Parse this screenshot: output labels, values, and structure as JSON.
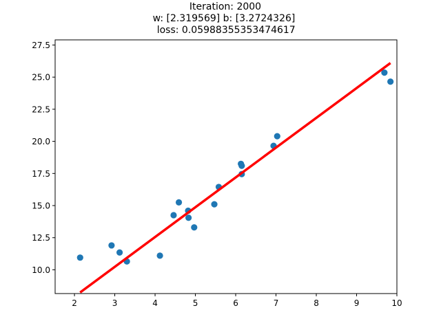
{
  "chart_data": {
    "type": "scatter",
    "title_lines": [
      "Iteration: 2000",
      "w: [2.319569] b: [3.2724326]",
      " loss: 0.05988355353474617"
    ],
    "xlabel": "",
    "ylabel": "",
    "xlim": [
      1.52,
      10.0
    ],
    "ylim": [
      8.15,
      27.9
    ],
    "x_ticks": [
      2,
      3,
      4,
      5,
      6,
      7,
      8,
      9,
      10
    ],
    "x_tick_labels": [
      "2",
      "3",
      "4",
      "5",
      "6",
      "7",
      "8",
      "9",
      "10"
    ],
    "y_ticks": [
      10.0,
      12.5,
      15.0,
      17.5,
      20.0,
      22.5,
      25.0,
      27.5
    ],
    "y_tick_labels": [
      "10.0",
      "12.5",
      "15.0",
      "17.5",
      "20.0",
      "22.5",
      "25.0",
      "27.5"
    ],
    "grid": false,
    "legend": "none",
    "points": {
      "color": "#1f77b4",
      "x": [
        2.14,
        2.92,
        3.12,
        3.3,
        4.12,
        4.46,
        4.59,
        4.82,
        4.83,
        4.97,
        5.47,
        5.58,
        6.13,
        6.15,
        6.15,
        6.94,
        7.03,
        9.69,
        9.84
      ],
      "y": [
        10.95,
        11.9,
        11.35,
        10.65,
        11.1,
        14.25,
        15.25,
        14.6,
        14.05,
        13.3,
        15.1,
        16.45,
        18.25,
        18.1,
        17.45,
        19.65,
        20.4,
        25.35,
        24.65
      ]
    },
    "fit_line": {
      "color": "#ff0000",
      "w": 2.319569,
      "b": 3.2724326,
      "x_range": [
        2.14,
        9.84
      ]
    }
  }
}
